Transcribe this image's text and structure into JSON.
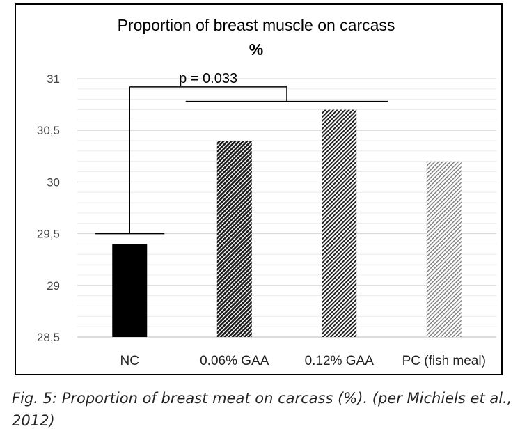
{
  "chart_data": {
    "type": "bar",
    "title": "Proportion of breast muscle on carcass",
    "subtitle": "%",
    "categories": [
      "NC",
      "0.06% GAA",
      "0.12% GAA",
      "PC (fish meal)"
    ],
    "values": [
      29.4,
      30.4,
      30.7,
      30.2
    ],
    "ylim": [
      28.5,
      31
    ],
    "yticks": [
      28.5,
      29,
      29.5,
      30,
      30.5,
      31
    ],
    "ytick_labels": [
      "28,5",
      "29",
      "29,5",
      "30",
      "30,5",
      "31"
    ],
    "minor_grid_step": 0.1,
    "grid": true,
    "xlabel": "",
    "ylabel": "",
    "bar_fills": [
      "solid-black",
      "dense-diagonal-hatch",
      "diagonal-hatch",
      "light-diagonal-hatch"
    ],
    "annotation": {
      "text": "p = 0.033",
      "left_level": 29.5,
      "right_level": 30.78,
      "top_level": 30.92
    }
  },
  "caption": "Fig. 5: Proportion of breast meat on carcass (%). (per Michiels et al., 2012)"
}
